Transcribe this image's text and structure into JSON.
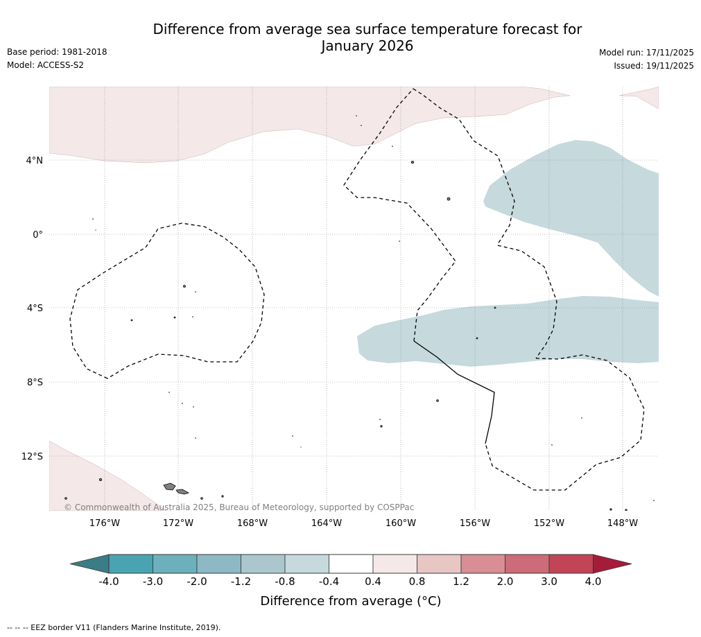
{
  "title": {
    "line1": "Difference from average sea surface temperature forecast for",
    "line2": "January 2026"
  },
  "meta_left": {
    "base_period": "Base period: 1981-2018",
    "model": "Model: ACCESS-S2"
  },
  "meta_right": {
    "model_run": "Model run: 17/11/2025",
    "issued": "Issued: 19/11/2025"
  },
  "map": {
    "lat_labels": [
      "4°N",
      "0°",
      "4°S",
      "8°S",
      "12°S"
    ],
    "lon_labels": [
      "176°W",
      "172°W",
      "168°W",
      "164°W",
      "160°W",
      "156°W",
      "152°W",
      "148°W"
    ],
    "copyright": "© Commonwealth of Australia 2025, Bureau of Meteorology, supported by COSPPac",
    "colors": {
      "warm_anomaly": "#f4e8e8",
      "cool_anomaly": "#c6d9dd",
      "land": "#808080",
      "grid": "#888888"
    }
  },
  "colorbar": {
    "ticks": [
      "-4.0",
      "-3.0",
      "-2.0",
      "-1.2",
      "-0.8",
      "-0.4",
      "0.4",
      "0.8",
      "1.2",
      "2.0",
      "3.0",
      "4.0"
    ],
    "colors": [
      "#4aa3b3",
      "#6cb0bd",
      "#8cb9c4",
      "#abc7cd",
      "#c6d9dd",
      "#ffffff",
      "#f4e8e8",
      "#e8c6c3",
      "#d88e94",
      "#cc6c78",
      "#c24557"
    ],
    "under_color": "#3a7d87",
    "over_color": "#a51c3a",
    "label": "Difference from average (°C)"
  },
  "footnote": "--  --  -- EEZ border V11 (Flanders Marine Institute, 2019)."
}
